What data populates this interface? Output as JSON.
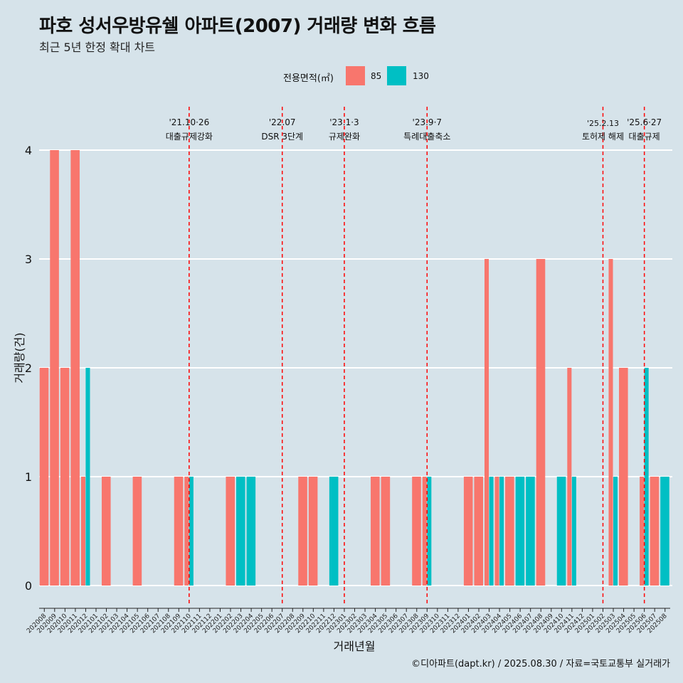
{
  "header": {
    "title": "파호 성서우방유쉘 아파트(2007) 거래량 변화 흐름",
    "subtitle": "최근 5년 한정 확대 차트"
  },
  "legend": {
    "title": "전용면적(㎡)",
    "items": [
      {
        "label": "85",
        "color": "#f8766d"
      },
      {
        "label": "130",
        "color": "#00bfc4"
      }
    ]
  },
  "caption": "©디아파트(dapt.kr) / 2025.08.30 / 자료=국토교통부 실거래가",
  "chart_data": {
    "type": "bar",
    "xlabel": "거래년월",
    "ylabel": "거래량(건)",
    "ylim": [
      0,
      4
    ],
    "yticks": [
      0,
      1,
      2,
      3,
      4
    ],
    "grid": true,
    "legend_position": "top",
    "categories": [
      "202008",
      "202009",
      "202010",
      "202011",
      "202012",
      "202101",
      "202102",
      "202103",
      "202104",
      "202105",
      "202106",
      "202107",
      "202108",
      "202109",
      "202110",
      "202111",
      "202112",
      "202201",
      "202202",
      "202203",
      "202204",
      "202205",
      "202206",
      "202207",
      "202208",
      "202209",
      "202210",
      "202211",
      "202212",
      "202301",
      "202302",
      "202303",
      "202304",
      "202305",
      "202306",
      "202307",
      "202308",
      "202309",
      "202310",
      "202311",
      "202312",
      "202401",
      "202402",
      "202403",
      "202404",
      "202405",
      "202406",
      "202407",
      "202408",
      "202409",
      "202410",
      "202411",
      "202412",
      "202501",
      "202502",
      "202503",
      "202504",
      "202505",
      "202506",
      "202507",
      "202508"
    ],
    "series": [
      {
        "name": "85",
        "color": "#f8766d",
        "values": [
          2,
          4,
          2,
          4,
          1,
          0,
          1,
          0,
          0,
          1,
          0,
          0,
          0,
          1,
          1,
          0,
          0,
          0,
          1,
          0,
          0,
          0,
          0,
          0,
          0,
          1,
          1,
          0,
          0,
          0,
          0,
          0,
          1,
          1,
          0,
          0,
          1,
          1,
          0,
          0,
          0,
          1,
          1,
          3,
          1,
          1,
          0,
          0,
          3,
          0,
          0,
          2,
          0,
          0,
          0,
          3,
          2,
          0,
          1,
          1,
          0
        ]
      },
      {
        "name": "130",
        "color": "#00bfc4",
        "values": [
          0,
          0,
          0,
          0,
          2,
          0,
          0,
          0,
          0,
          0,
          0,
          0,
          0,
          0,
          1,
          0,
          0,
          0,
          0,
          1,
          1,
          0,
          0,
          0,
          0,
          0,
          0,
          0,
          1,
          0,
          0,
          0,
          0,
          0,
          0,
          0,
          0,
          1,
          0,
          0,
          0,
          0,
          0,
          1,
          1,
          0,
          1,
          1,
          0,
          0,
          1,
          1,
          0,
          0,
          0,
          1,
          0,
          0,
          2,
          0,
          1
        ]
      }
    ],
    "events": [
      {
        "month": "202110",
        "date": "'21.10·26",
        "label": "대출규제강화"
      },
      {
        "month": "202207",
        "date": "'22.07",
        "label": "DSR 3단계"
      },
      {
        "month": "202301",
        "date": "'23.1·3",
        "label": "규제완화"
      },
      {
        "month": "202309",
        "date": "'23.9·7",
        "label": "특례대출축소"
      },
      {
        "month": "202502",
        "date": "'25.2.13",
        "label": "토허제 해제"
      },
      {
        "month": "202506",
        "date": "'25.6·27",
        "label": "대출규제"
      }
    ]
  }
}
